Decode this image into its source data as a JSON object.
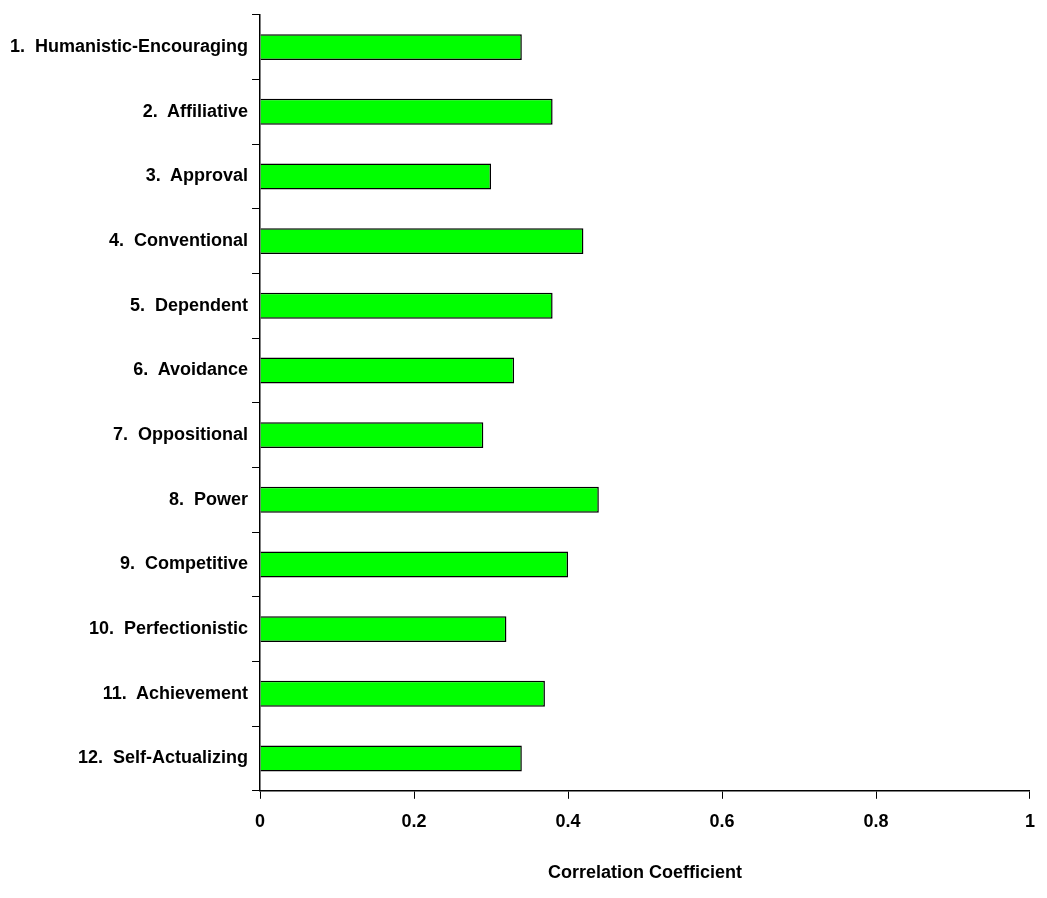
{
  "chart_data": {
    "type": "bar",
    "orientation": "horizontal",
    "xlabel": "Correlation Coefficient",
    "categories": [
      "1.  Humanistic-Encouraging",
      "2.  Affiliative",
      "3.  Approval",
      "4.  Conventional",
      "5.  Dependent",
      "6.  Avoidance",
      "7.  Oppositional",
      "8.  Power",
      "9.  Competitive",
      "10.  Perfectionistic",
      "11.  Achievement",
      "12.  Self-Actualizing"
    ],
    "values": [
      0.34,
      0.38,
      0.3,
      0.42,
      0.38,
      0.33,
      0.29,
      0.44,
      0.4,
      0.32,
      0.37,
      0.34
    ],
    "color": "#00ff00",
    "xlim": [
      0,
      1
    ],
    "xticks": [
      0,
      0.2,
      0.4,
      0.6,
      0.8,
      1
    ]
  }
}
